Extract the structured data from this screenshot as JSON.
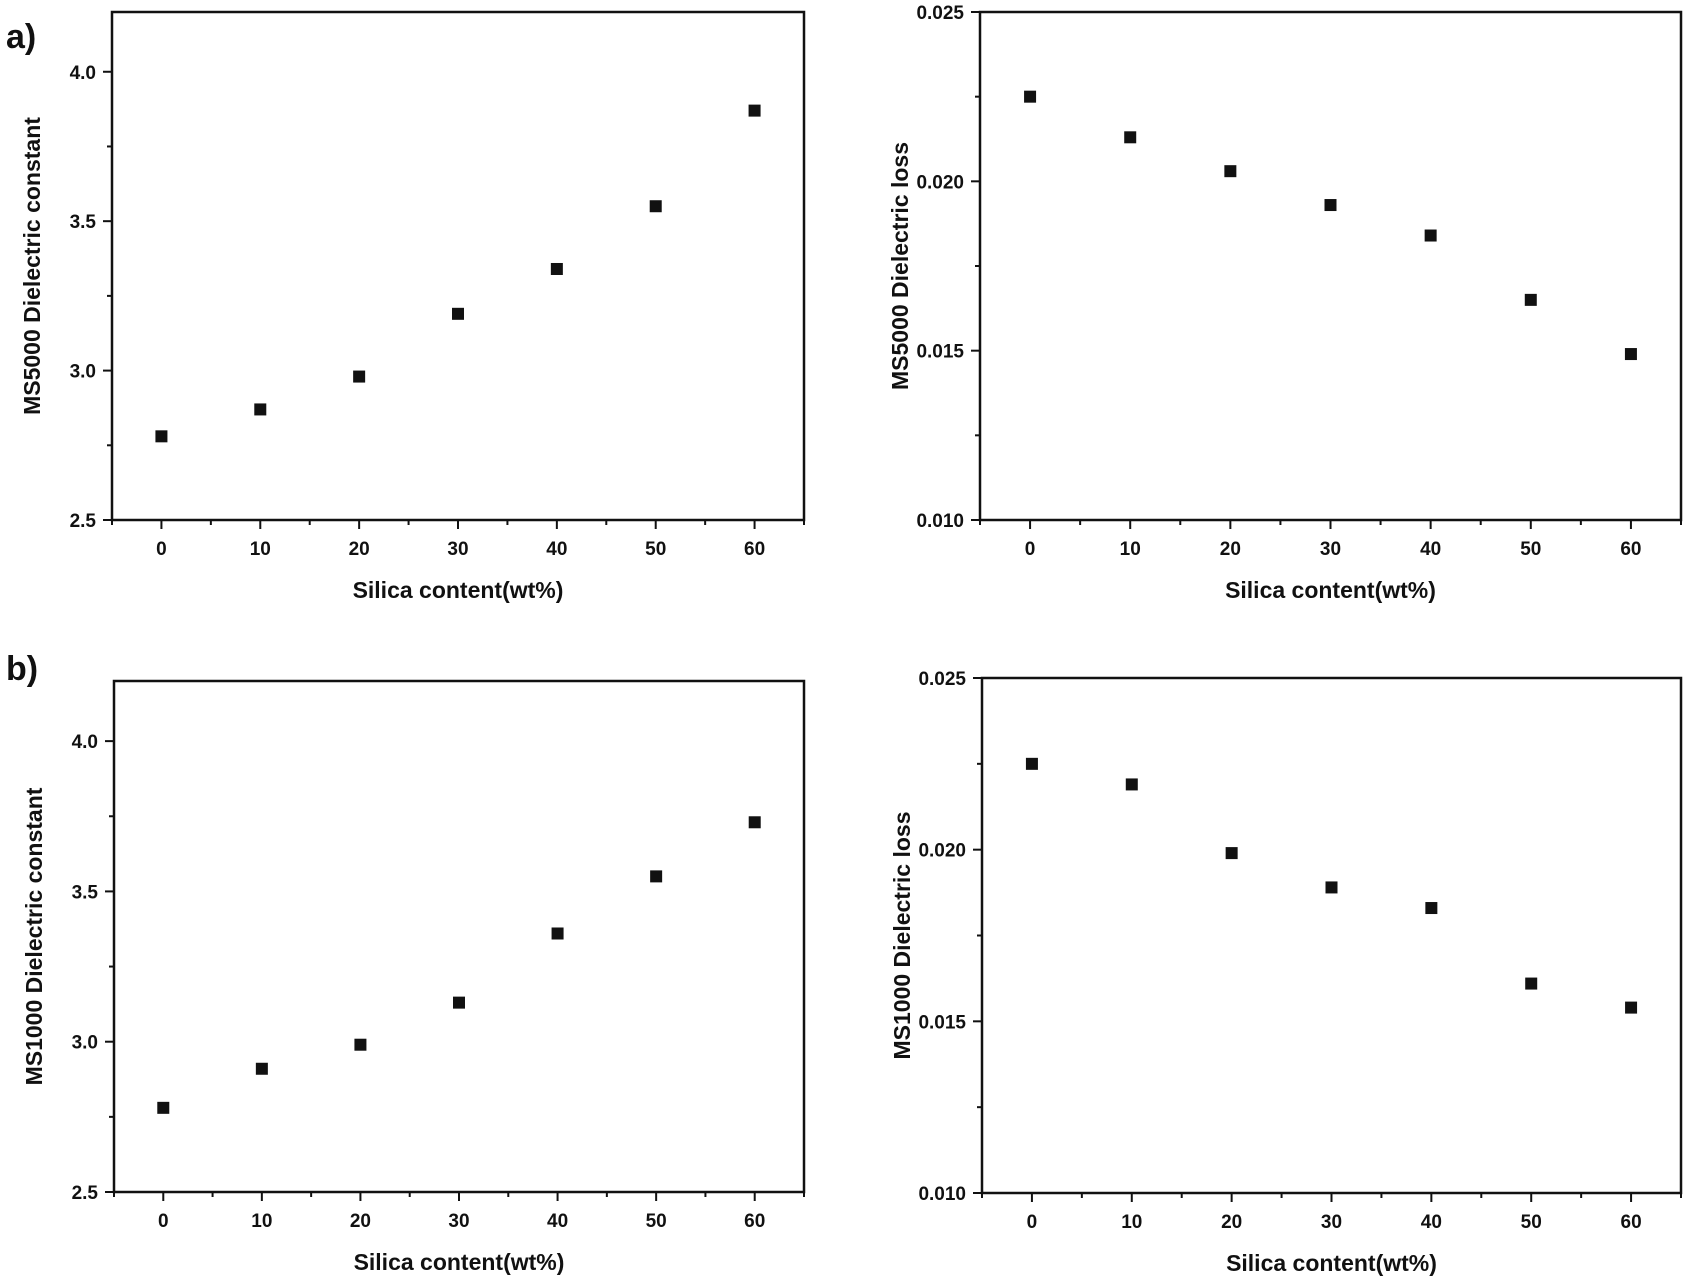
{
  "panel_labels": [
    "a)",
    "b)"
  ],
  "chart_data": [
    {
      "type": "scatter",
      "panel": "a)",
      "xlabel": "Silica content(wt%)",
      "ylabel": "MS5000 Dielectric constant",
      "xlim": [
        -5,
        65
      ],
      "ylim": [
        2.5,
        4.2
      ],
      "xticks": [
        0,
        10,
        20,
        30,
        40,
        50,
        60
      ],
      "yticks": [
        "2.5",
        "3.0",
        "3.5",
        "4.0"
      ],
      "marker": "square",
      "x": [
        0,
        10,
        20,
        30,
        40,
        50,
        60
      ],
      "y": [
        2.78,
        2.87,
        2.98,
        3.19,
        3.34,
        3.55,
        3.87
      ]
    },
    {
      "type": "scatter",
      "panel": "a)",
      "xlabel": "Silica content(wt%)",
      "ylabel": "MS5000 Dielectric loss",
      "xlim": [
        -5,
        65
      ],
      "ylim": [
        0.01,
        0.025
      ],
      "xticks": [
        0,
        10,
        20,
        30,
        40,
        50,
        60
      ],
      "yticks": [
        "0.010",
        "0.015",
        "0.020",
        "0.025"
      ],
      "marker": "square",
      "x": [
        0,
        10,
        20,
        30,
        40,
        50,
        60
      ],
      "y": [
        0.0225,
        0.0213,
        0.0203,
        0.0193,
        0.0184,
        0.0165,
        0.0149
      ]
    },
    {
      "type": "scatter",
      "panel": "b)",
      "xlabel": "Silica content(wt%)",
      "ylabel": "MS1000 Dielectric constant",
      "xlim": [
        -5,
        65
      ],
      "ylim": [
        2.5,
        4.2
      ],
      "xticks": [
        0,
        10,
        20,
        30,
        40,
        50,
        60
      ],
      "yticks": [
        "2.5",
        "3.0",
        "3.5",
        "4.0"
      ],
      "marker": "square",
      "x": [
        0,
        10,
        20,
        30,
        40,
        50,
        60
      ],
      "y": [
        2.78,
        2.91,
        2.99,
        3.13,
        3.36,
        3.55,
        3.73
      ]
    },
    {
      "type": "scatter",
      "panel": "b)",
      "xlabel": "Silica content(wt%)",
      "ylabel": "MS1000 Dielectric loss",
      "xlim": [
        -5,
        65
      ],
      "ylim": [
        0.01,
        0.025
      ],
      "xticks": [
        0,
        10,
        20,
        30,
        40,
        50,
        60
      ],
      "yticks": [
        "0.010",
        "0.015",
        "0.020",
        "0.025"
      ],
      "marker": "square",
      "x": [
        0,
        10,
        20,
        30,
        40,
        50,
        60
      ],
      "y": [
        0.0225,
        0.0219,
        0.0199,
        0.0189,
        0.0183,
        0.0161,
        0.0154
      ]
    }
  ]
}
